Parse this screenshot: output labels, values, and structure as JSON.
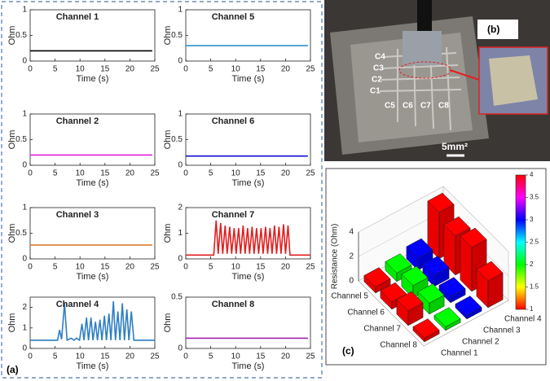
{
  "chart_data": [
    {
      "type": "line",
      "title": "Channel 1",
      "xlabel": "Time (s)",
      "ylabel": "Ohm",
      "x": [
        0,
        24.5
      ],
      "series": [
        {
          "color": "#000000",
          "values": [
            0.2,
            0.2
          ]
        }
      ],
      "xlim": [
        0,
        25
      ],
      "xticks": [
        0,
        5,
        10,
        15,
        20,
        25
      ],
      "ylim": [
        0,
        1
      ],
      "yticks": [
        0,
        0.5,
        1
      ]
    },
    {
      "type": "line",
      "title": "Channel 2",
      "xlabel": "Time (s)",
      "ylabel": "Ohm",
      "x": [
        0,
        24.5
      ],
      "series": [
        {
          "color": "#e020e0",
          "values": [
            0.2,
            0.2
          ]
        }
      ],
      "xlim": [
        0,
        25
      ],
      "xticks": [
        0,
        5,
        10,
        15,
        20,
        25
      ],
      "ylim": [
        0,
        1
      ],
      "yticks": [
        0,
        0.5,
        1
      ]
    },
    {
      "type": "line",
      "title": "Channel 3",
      "xlabel": "Time (s)",
      "ylabel": "Ohm",
      "x": [
        0,
        24.5
      ],
      "series": [
        {
          "color": "#e07020",
          "values": [
            0.27,
            0.27
          ]
        }
      ],
      "xlim": [
        0,
        25
      ],
      "xticks": [
        0,
        5,
        10,
        15,
        20,
        25
      ],
      "ylim": [
        0,
        1
      ],
      "yticks": [
        0,
        0.5,
        1
      ]
    },
    {
      "type": "line",
      "title": "Channel 4",
      "xlabel": "Time (s)",
      "ylabel": "Ohm",
      "x": [
        0,
        5.5,
        5.9,
        6.3,
        6.9,
        7.4,
        8.2,
        8.8,
        9.3,
        9.9,
        10.4,
        10.8,
        11.3,
        11.7,
        12.2,
        12.6,
        13.1,
        13.5,
        14.0,
        14.4,
        14.9,
        15.3,
        15.8,
        16.2,
        16.7,
        17.1,
        17.6,
        18.0,
        18.5,
        18.9,
        19.4,
        19.8,
        20.3,
        20.8,
        25
      ],
      "series": [
        {
          "color": "#2f7fc1",
          "values": [
            0.4,
            0.4,
            0.9,
            0.45,
            2.2,
            0.4,
            0.5,
            0.4,
            0.5,
            0.4,
            1.2,
            0.4,
            1.5,
            0.4,
            1.5,
            0.4,
            1.3,
            0.4,
            1.4,
            0.4,
            1.6,
            0.4,
            1.7,
            0.4,
            2.3,
            0.4,
            1.8,
            0.4,
            2.2,
            0.4,
            1.9,
            0.4,
            1.8,
            0.4,
            0.4
          ]
        }
      ],
      "xlim": [
        0,
        25
      ],
      "xticks": [
        0,
        5,
        10,
        15,
        20,
        25
      ],
      "ylim": [
        0,
        2.5
      ],
      "yticks": [
        0,
        1,
        2
      ]
    },
    {
      "type": "line",
      "title": "Channel 5",
      "xlabel": "Time (s)",
      "ylabel": "Ohm",
      "x": [
        0,
        24.5
      ],
      "series": [
        {
          "color": "#2f8fd0",
          "values": [
            0.3,
            0.3
          ]
        }
      ],
      "xlim": [
        0,
        25
      ],
      "xticks": [
        0,
        5,
        10,
        15,
        20,
        25
      ],
      "ylim": [
        0,
        1
      ],
      "yticks": [
        0,
        0.5,
        1
      ]
    },
    {
      "type": "line",
      "title": "Channel 6",
      "xlabel": "Time (s)",
      "ylabel": "Ohm",
      "x": [
        0,
        24.5
      ],
      "series": [
        {
          "color": "#1010d0",
          "values": [
            0.18,
            0.18
          ]
        }
      ],
      "xlim": [
        0,
        25
      ],
      "xticks": [
        0,
        5,
        10,
        15,
        20,
        25
      ],
      "ylim": [
        0,
        1
      ],
      "yticks": [
        0,
        0.5,
        1
      ]
    },
    {
      "type": "line",
      "title": "Channel 7",
      "xlabel": "Time (s)",
      "ylabel": "Ohm",
      "x": [
        0,
        5.6,
        6.1,
        6.5,
        7.0,
        7.4,
        7.9,
        8.3,
        8.8,
        9.2,
        9.7,
        10.1,
        10.6,
        11.0,
        11.5,
        11.9,
        12.4,
        12.8,
        13.3,
        13.7,
        14.2,
        14.6,
        15.1,
        15.5,
        16.0,
        16.4,
        16.9,
        17.3,
        17.8,
        18.2,
        18.7,
        19.1,
        19.6,
        20.0,
        20.5,
        20.9,
        25
      ],
      "series": [
        {
          "color": "#e02020",
          "values": [
            0.15,
            0.15,
            1.5,
            0.2,
            1.4,
            0.2,
            1.3,
            0.2,
            1.25,
            0.2,
            1.2,
            0.2,
            1.2,
            0.2,
            1.3,
            0.2,
            1.2,
            0.2,
            1.25,
            0.2,
            1.2,
            0.2,
            1.2,
            0.2,
            1.25,
            0.2,
            1.2,
            0.2,
            1.3,
            0.2,
            1.25,
            0.2,
            1.35,
            0.2,
            1.3,
            0.15,
            0.15
          ]
        }
      ],
      "xlim": [
        0,
        25
      ],
      "xticks": [
        0,
        5,
        10,
        15,
        20,
        25
      ],
      "ylim": [
        0,
        2
      ],
      "yticks": [
        0,
        1,
        2
      ]
    },
    {
      "type": "line",
      "title": "Channel 8",
      "xlabel": "Time (s)",
      "ylabel": "Ohm",
      "x": [
        0,
        24.5
      ],
      "series": [
        {
          "color": "#a020b0",
          "values": [
            0.1,
            0.1
          ]
        }
      ],
      "xlim": [
        0,
        25
      ],
      "xticks": [
        0,
        5,
        10,
        15,
        20,
        25
      ],
      "ylim": [
        0,
        0.5
      ],
      "yticks": [
        0,
        0.5
      ]
    },
    {
      "type": "bar3d",
      "zlabel": "Resistance (Ohm)",
      "rows": [
        "Channel 5",
        "Channel 6",
        "Channel 7",
        "Channel 8"
      ],
      "series": [
        {
          "name": "Channel 1",
          "color": "#ff0000",
          "values": [
            0.5,
            0.6,
            1.2,
            0.3
          ]
        },
        {
          "name": "Channel 2",
          "color": "#00ff00",
          "values": [
            0.7,
            1.0,
            0.9,
            0.3
          ]
        },
        {
          "name": "Channel 3",
          "color": "#0000ff",
          "values": [
            1.0,
            0.9,
            0.5,
            0.3
          ]
        },
        {
          "name": "Channel 4",
          "color": "#ff0000",
          "values": [
            3.8,
            3.2,
            3.6,
            2.2
          ]
        }
      ],
      "zlim": [
        0,
        4
      ],
      "zticks": [
        0,
        2,
        4
      ],
      "colorbar": {
        "lim": [
          1,
          4
        ],
        "ticks": [
          1,
          1.5,
          2,
          2.5,
          3,
          3.5,
          4
        ],
        "colormap": [
          "#ff0000",
          "#ffff00",
          "#00ff00",
          "#00ffff",
          "#0000ff",
          "#ff00ff",
          "#ff0000"
        ]
      }
    }
  ],
  "photo": {
    "labels": [
      "C1",
      "C2",
      "C3",
      "C4",
      "C5",
      "C6",
      "C7",
      "C8"
    ],
    "scale_label": "5mm²"
  },
  "panel_labels": [
    "(a)",
    "(b)",
    "(c)"
  ]
}
